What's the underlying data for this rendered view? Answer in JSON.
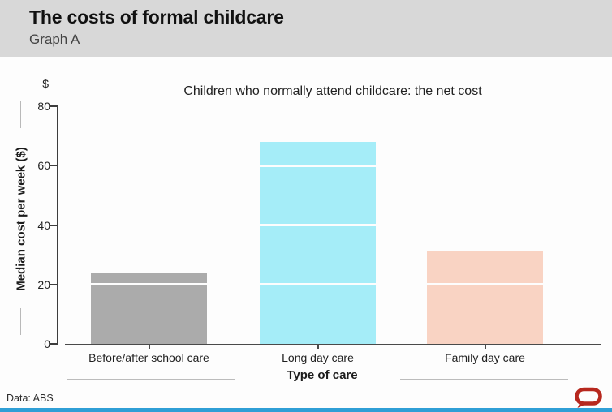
{
  "header": {
    "title": "The costs of formal childcare",
    "subtitle": "Graph A"
  },
  "chart": {
    "currency_label": "$"
  },
  "chart_data": {
    "type": "bar",
    "title": "Children who normally attend childcare: the net cost",
    "categories": [
      "Before/after school care",
      "Long day care",
      "Family day care"
    ],
    "values": [
      24,
      68,
      31
    ],
    "bar_colors": [
      "#ababab",
      "#a5edf8",
      "#f9d3c3"
    ],
    "xlabel": "Type of care",
    "ylabel": "Median cost per week ($)",
    "ylim": [
      0,
      80
    ],
    "yticks": [
      0,
      20,
      40,
      60,
      80
    ],
    "gridlines": [
      20,
      40,
      60
    ],
    "grid_style": "white lines overlaid on bars",
    "legend_position": "none"
  },
  "footer": {
    "source": "Data: ABS"
  },
  "colors": {
    "header_bg": "#d8d8d8",
    "accent_strip": "#2f9fd6",
    "logo_red": "#b7281e",
    "axis": "#3d3d3d"
  }
}
